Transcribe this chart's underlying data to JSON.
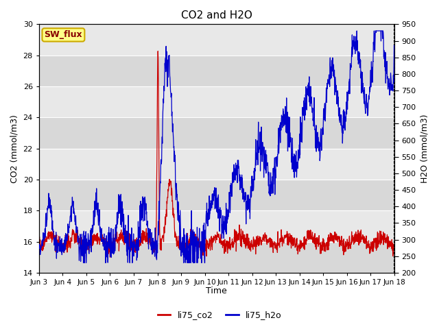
{
  "title": "CO2 and H2O",
  "xlabel": "Time",
  "ylabel_left": "CO2 (mmol/m3)",
  "ylabel_right": "H2O (mmol/m3)",
  "ylim_left": [
    14,
    30
  ],
  "ylim_right": [
    200,
    950
  ],
  "yticks_left": [
    14,
    16,
    18,
    20,
    22,
    24,
    26,
    28,
    30
  ],
  "yticks_right": [
    200,
    250,
    300,
    350,
    400,
    450,
    500,
    550,
    600,
    650,
    700,
    750,
    800,
    850,
    900,
    950
  ],
  "legend_labels": [
    "li75_co2",
    "li75_h2o"
  ],
  "legend_colors": [
    "#cc0000",
    "#0000cc"
  ],
  "annotation_text": "SW_flux",
  "annotation_bg": "#ffff88",
  "annotation_border": "#ccaa00",
  "annotation_text_color": "#880000",
  "color_co2": "#cc0000",
  "color_h2o": "#0000cc",
  "bg_color_dark": "#d8d8d8",
  "bg_color_light": "#e8e8e8",
  "fig_bg": "#ffffff",
  "x_tick_labels": [
    "Jun 3",
    "Jun 4",
    "Jun 5",
    "Jun 6",
    "Jun 7",
    "Jun 8",
    "Jun 9",
    "Jun 10",
    "Jun 11",
    "Jun 12",
    "Jun 13",
    "Jun 14",
    "Jun 15",
    "Jun 16",
    "Jun 17",
    "Jun 18"
  ],
  "x_tick_positions": [
    0,
    24,
    48,
    72,
    96,
    120,
    144,
    168,
    192,
    216,
    240,
    264,
    288,
    312,
    336,
    360
  ]
}
